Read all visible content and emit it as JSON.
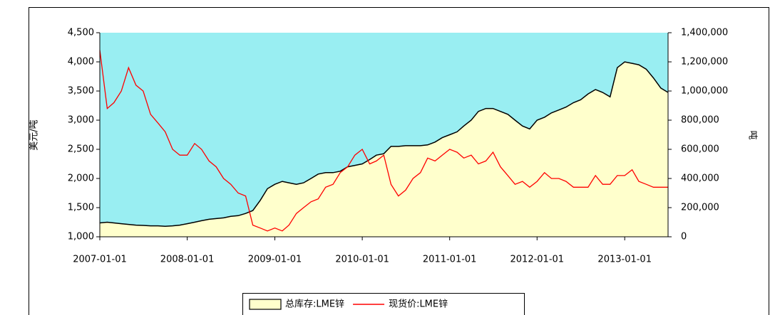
{
  "chart_data": {
    "type": "line",
    "y_label": "美元/吨",
    "y2_label": "吨",
    "x": [
      "2007-01-01",
      "2007-02-01",
      "2007-03-01",
      "2007-04-01",
      "2007-05-01",
      "2007-06-01",
      "2007-07-01",
      "2007-08-01",
      "2007-09-01",
      "2007-10-01",
      "2007-11-01",
      "2007-12-01",
      "2008-01-01",
      "2008-02-01",
      "2008-03-01",
      "2008-04-01",
      "2008-05-01",
      "2008-06-01",
      "2008-07-01",
      "2008-08-01",
      "2008-09-01",
      "2008-10-01",
      "2008-11-01",
      "2008-12-01",
      "2009-01-01",
      "2009-02-01",
      "2009-03-01",
      "2009-04-01",
      "2009-05-01",
      "2009-06-01",
      "2009-07-01",
      "2009-08-01",
      "2009-09-01",
      "2009-10-01",
      "2009-11-01",
      "2009-12-01",
      "2010-01-01",
      "2010-02-01",
      "2010-03-01",
      "2010-04-01",
      "2010-05-01",
      "2010-06-01",
      "2010-07-01",
      "2010-08-01",
      "2010-09-01",
      "2010-10-01",
      "2010-11-01",
      "2010-12-01",
      "2011-01-01",
      "2011-02-01",
      "2011-03-01",
      "2011-04-01",
      "2011-05-01",
      "2011-06-01",
      "2011-07-01",
      "2011-08-01",
      "2011-09-01",
      "2011-10-01",
      "2011-11-01",
      "2011-12-01",
      "2012-01-01",
      "2012-02-01",
      "2012-03-01",
      "2012-04-01",
      "2012-05-01",
      "2012-06-01",
      "2012-07-01",
      "2012-08-01",
      "2012-09-01",
      "2012-10-01",
      "2012-11-01",
      "2012-12-01",
      "2013-01-01",
      "2013-02-01",
      "2013-03-01",
      "2013-04-01",
      "2013-05-01",
      "2013-06-01",
      "2013-07-01"
    ],
    "xlim": [
      "2007-01-01",
      "2013-07-01"
    ],
    "xticks": [
      "2007-01-01",
      "2008-01-01",
      "2009-01-01",
      "2010-01-01",
      "2011-01-01",
      "2012-01-01",
      "2013-01-01"
    ],
    "ylim": [
      1000,
      4500
    ],
    "yticks": [
      {
        "value": 1000,
        "label": "1,000"
      },
      {
        "value": 1500,
        "label": "1,500"
      },
      {
        "value": 2000,
        "label": "2,000"
      },
      {
        "value": 2500,
        "label": "2,500"
      },
      {
        "value": 3000,
        "label": "3,000"
      },
      {
        "value": 3500,
        "label": "3,500"
      },
      {
        "value": 4000,
        "label": "4,000"
      },
      {
        "value": 4500,
        "label": "4,500"
      }
    ],
    "y2lim": [
      0,
      1400000
    ],
    "y2ticks": [
      0,
      {
        "value": 200000,
        "label": "200,000"
      },
      {
        "value": 400000,
        "label": "400,000"
      },
      {
        "value": 600000,
        "label": "600,000"
      },
      {
        "value": 800000,
        "label": "800,000"
      },
      {
        "value": 1000000,
        "label": "1,000,000"
      },
      {
        "value": 1200000,
        "label": "1,200,000"
      },
      {
        "value": 1400000,
        "label": "1,400,000"
      }
    ],
    "background": "#99eef2",
    "series": [
      {
        "name": "总库存:LME锌",
        "type": "area",
        "axis": "y2",
        "color": "#ffffcc",
        "values": [
          95000,
          100000,
          95000,
          90000,
          85000,
          80000,
          78000,
          75000,
          75000,
          72000,
          75000,
          80000,
          90000,
          100000,
          110000,
          120000,
          125000,
          130000,
          140000,
          145000,
          160000,
          180000,
          250000,
          330000,
          360000,
          380000,
          370000,
          360000,
          370000,
          400000,
          430000,
          440000,
          440000,
          450000,
          480000,
          490000,
          500000,
          530000,
          560000,
          570000,
          620000,
          620000,
          625000,
          625000,
          625000,
          630000,
          650000,
          680000,
          700000,
          720000,
          760000,
          800000,
          860000,
          880000,
          880000,
          860000,
          840000,
          800000,
          760000,
          740000,
          800000,
          820000,
          850000,
          870000,
          890000,
          920000,
          940000,
          980000,
          1010000,
          990000,
          960000,
          1160000,
          1200000,
          1190000,
          1180000,
          1150000,
          1090000,
          1020000,
          990000
        ]
      },
      {
        "name": "现货价:LME锌",
        "type": "line",
        "axis": "y",
        "color": "#ff0000",
        "values": [
          4200,
          3200,
          3300,
          3500,
          3900,
          3600,
          3500,
          3100,
          2950,
          2800,
          2500,
          2400,
          2400,
          2600,
          2500,
          2300,
          2200,
          2000,
          1900,
          1750,
          1700,
          1200,
          1150,
          1100,
          1150,
          1100,
          1200,
          1400,
          1500,
          1600,
          1650,
          1850,
          1900,
          2100,
          2200,
          2400,
          2500,
          2250,
          2300,
          2400,
          1900,
          1700,
          1800,
          2000,
          2100,
          2350,
          2300,
          2400,
          2500,
          2450,
          2350,
          2400,
          2250,
          2300,
          2450,
          2200,
          2050,
          1900,
          1950,
          1850,
          1950,
          2100,
          2000,
          2000,
          1950,
          1850,
          1850,
          1850,
          2050,
          1900,
          1900,
          2050,
          2050,
          2150,
          1950,
          1900,
          1850,
          1850,
          1850
        ]
      }
    ]
  }
}
